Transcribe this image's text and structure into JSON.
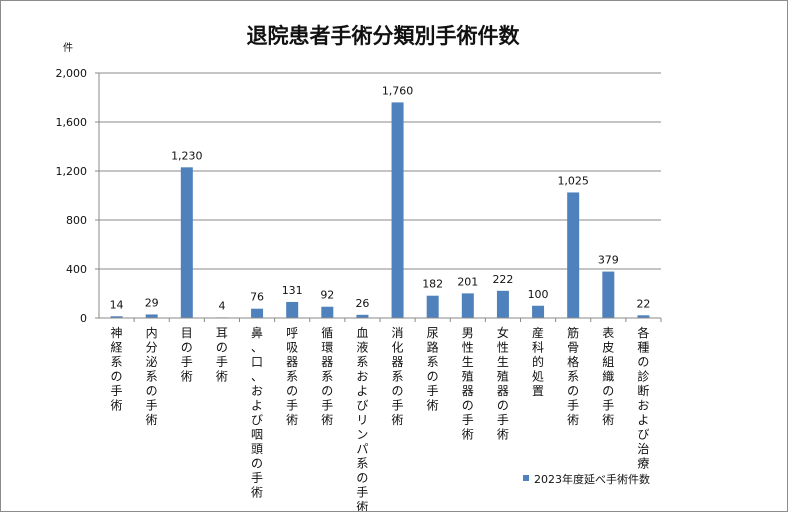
{
  "chart_data": {
    "type": "bar",
    "title": "退院患者手術分類別手術件数",
    "ylabel": "件",
    "xlabel": "",
    "ylim": [
      0,
      2000
    ],
    "yticks": [
      "0",
      "400",
      "800",
      "1,200",
      "1,600",
      "2,000"
    ],
    "grid": true,
    "legend_position": "bottom-right",
    "color": "#4f81bd",
    "categories": [
      "神経系の手術",
      "内分泌系の手術",
      "目の手術",
      "耳の手術",
      "鼻、口、および咽頭の手術",
      "呼吸器系の手術",
      "循環器系の手術",
      "血液系およびリンパ系の手術",
      "消化器系の手術",
      "尿路系の手術",
      "男性生殖器の手術",
      "女性生殖器の手術",
      "産科的処置",
      "筋骨格系の手術",
      "表皮組織の手術",
      "各種の診断および治療"
    ],
    "series": [
      {
        "name": "2023年度延べ手術件数",
        "values": [
          14,
          29,
          1230,
          4,
          76,
          131,
          92,
          26,
          1760,
          182,
          201,
          222,
          100,
          1025,
          379,
          22
        ],
        "labels": [
          "14",
          "29",
          "1,230",
          "4",
          "76",
          "131",
          "92",
          "26",
          "1,760",
          "182",
          "201",
          "222",
          "100",
          "1,025",
          "379",
          "22"
        ]
      }
    ]
  }
}
